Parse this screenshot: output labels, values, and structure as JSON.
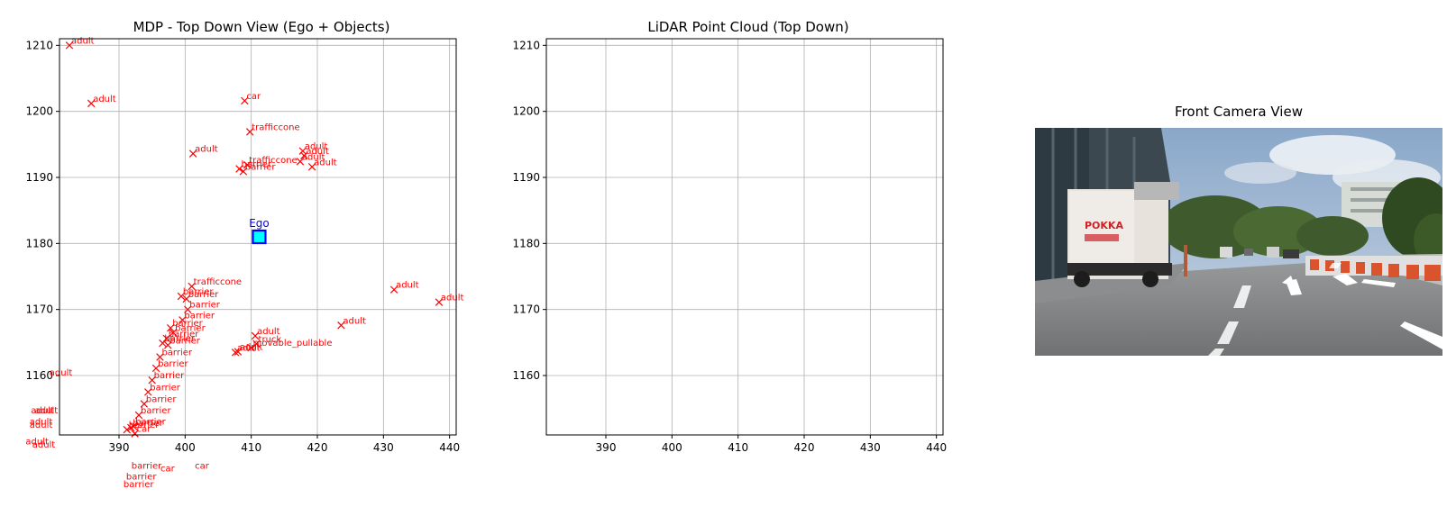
{
  "chart_data": [
    {
      "type": "scatter",
      "title": "MDP - Top Down View (Ego + Objects)",
      "xlim": [
        381,
        441
      ],
      "ylim": [
        1151,
        1211
      ],
      "xticks": [
        390,
        400,
        410,
        420,
        430,
        440
      ],
      "yticks": [
        1160,
        1170,
        1180,
        1190,
        1200,
        1210
      ],
      "grid": true,
      "ego": {
        "x": 411.2,
        "y": 1181.0,
        "label": "Ego"
      },
      "marker_color": "#ff0000",
      "ego_fill": "#00ffff",
      "ego_edge": "#0000ff",
      "objects": [
        {
          "x": 382.5,
          "y": 1210.0,
          "label": "adult"
        },
        {
          "x": 385.8,
          "y": 1201.2,
          "label": "adult"
        },
        {
          "x": 409.0,
          "y": 1201.6,
          "label": "car"
        },
        {
          "x": 409.8,
          "y": 1196.9,
          "label": "trafficcone"
        },
        {
          "x": 401.2,
          "y": 1193.6,
          "label": "adult"
        },
        {
          "x": 417.8,
          "y": 1194.0,
          "label": "adult"
        },
        {
          "x": 418.0,
          "y": 1193.3,
          "label": "adult"
        },
        {
          "x": 417.4,
          "y": 1192.4,
          "label": "adult"
        },
        {
          "x": 419.2,
          "y": 1191.6,
          "label": "adult"
        },
        {
          "x": 409.4,
          "y": 1191.9,
          "label": "trafficcone"
        },
        {
          "x": 408.2,
          "y": 1191.3,
          "label": "barrier"
        },
        {
          "x": 408.8,
          "y": 1190.9,
          "label": "barrier"
        },
        {
          "x": 401.0,
          "y": 1173.5,
          "label": "trafficcone"
        },
        {
          "x": 399.4,
          "y": 1172.0,
          "label": "barrier"
        },
        {
          "x": 400.2,
          "y": 1171.6,
          "label": "barrier"
        },
        {
          "x": 400.4,
          "y": 1170.0,
          "label": "barrier"
        },
        {
          "x": 399.6,
          "y": 1168.4,
          "label": "barrier"
        },
        {
          "x": 397.8,
          "y": 1167.2,
          "label": "barrier"
        },
        {
          "x": 398.2,
          "y": 1166.5,
          "label": "barrier"
        },
        {
          "x": 397.2,
          "y": 1165.6,
          "label": "barrier"
        },
        {
          "x": 396.6,
          "y": 1164.9,
          "label": "barrier"
        },
        {
          "x": 397.4,
          "y": 1164.6,
          "label": "barrier"
        },
        {
          "x": 396.2,
          "y": 1162.8,
          "label": "barrier"
        },
        {
          "x": 395.6,
          "y": 1161.1,
          "label": "barrier"
        },
        {
          "x": 395.0,
          "y": 1159.3,
          "label": "barrier"
        },
        {
          "x": 394.4,
          "y": 1157.5,
          "label": "barrier"
        },
        {
          "x": 393.8,
          "y": 1155.7,
          "label": "barrier"
        },
        {
          "x": 393.0,
          "y": 1154.0,
          "label": "barrier"
        },
        {
          "x": 392.2,
          "y": 1152.3,
          "label": "barrier"
        },
        {
          "x": 391.8,
          "y": 1152.1,
          "label": "barrier"
        },
        {
          "x": 391.2,
          "y": 1151.8,
          "label": "barrier"
        },
        {
          "x": 392.4,
          "y": 1151.2,
          "label": "car"
        },
        {
          "x": 431.6,
          "y": 1173.0,
          "label": "adult"
        },
        {
          "x": 438.4,
          "y": 1171.1,
          "label": "adult"
        },
        {
          "x": 423.6,
          "y": 1167.6,
          "label": "adult"
        },
        {
          "x": 410.6,
          "y": 1166.0,
          "label": "adult"
        },
        {
          "x": 410.8,
          "y": 1164.8,
          "label": "truck"
        },
        {
          "x": 407.6,
          "y": 1163.5,
          "label": "adult"
        },
        {
          "x": 408.0,
          "y": 1163.6,
          "label": "adult"
        },
        {
          "x": 410.0,
          "y": 1164.2,
          "label": "movable_pullable"
        },
        {
          "x": 379.2,
          "y": 1159.7,
          "label": "adult"
        },
        {
          "x": 376.4,
          "y": 1154.0,
          "label": "adult"
        },
        {
          "x": 377.0,
          "y": 1154.0,
          "label": "adult"
        },
        {
          "x": 376.2,
          "y": 1152.3,
          "label": "adult"
        },
        {
          "x": 376.2,
          "y": 1151.8,
          "label": "adult"
        },
        {
          "x": 375.6,
          "y": 1149.3,
          "label": "adult"
        },
        {
          "x": 376.6,
          "y": 1148.8,
          "label": "adult"
        },
        {
          "x": 391.6,
          "y": 1145.6,
          "label": "barrier"
        },
        {
          "x": 396.0,
          "y": 1145.2,
          "label": "car"
        },
        {
          "x": 401.2,
          "y": 1145.6,
          "label": "car"
        },
        {
          "x": 390.8,
          "y": 1144.0,
          "label": "barrier"
        },
        {
          "x": 390.4,
          "y": 1142.8,
          "label": "barrier"
        }
      ]
    },
    {
      "type": "scatter",
      "title": "LiDAR Point Cloud (Top Down)",
      "xlim": [
        381,
        441
      ],
      "ylim": [
        1151,
        1211
      ],
      "xticks": [
        390,
        400,
        410,
        420,
        430,
        440
      ],
      "yticks": [
        1160,
        1170,
        1180,
        1190,
        1200,
        1210
      ],
      "grid": true,
      "points": []
    }
  ],
  "camera": {
    "title": "Front Camera View",
    "truck_logo": "POKKA"
  },
  "colors": {
    "grid": "#b0b0b0",
    "axis": "#000000",
    "marker": "#ff0000",
    "ego_label": "#0000ff"
  }
}
